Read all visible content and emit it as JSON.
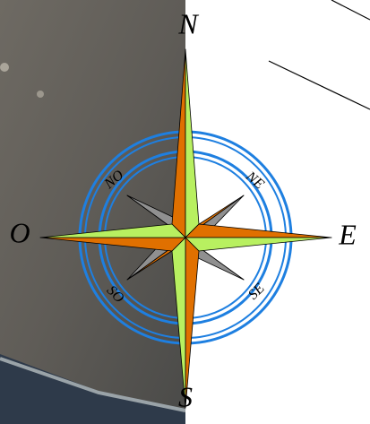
{
  "compass": {
    "north": "N",
    "east": "E",
    "south": "S",
    "west": "O",
    "northeast": "NE",
    "southeast": "SE",
    "southwest": "SO",
    "northwest": "NO"
  }
}
